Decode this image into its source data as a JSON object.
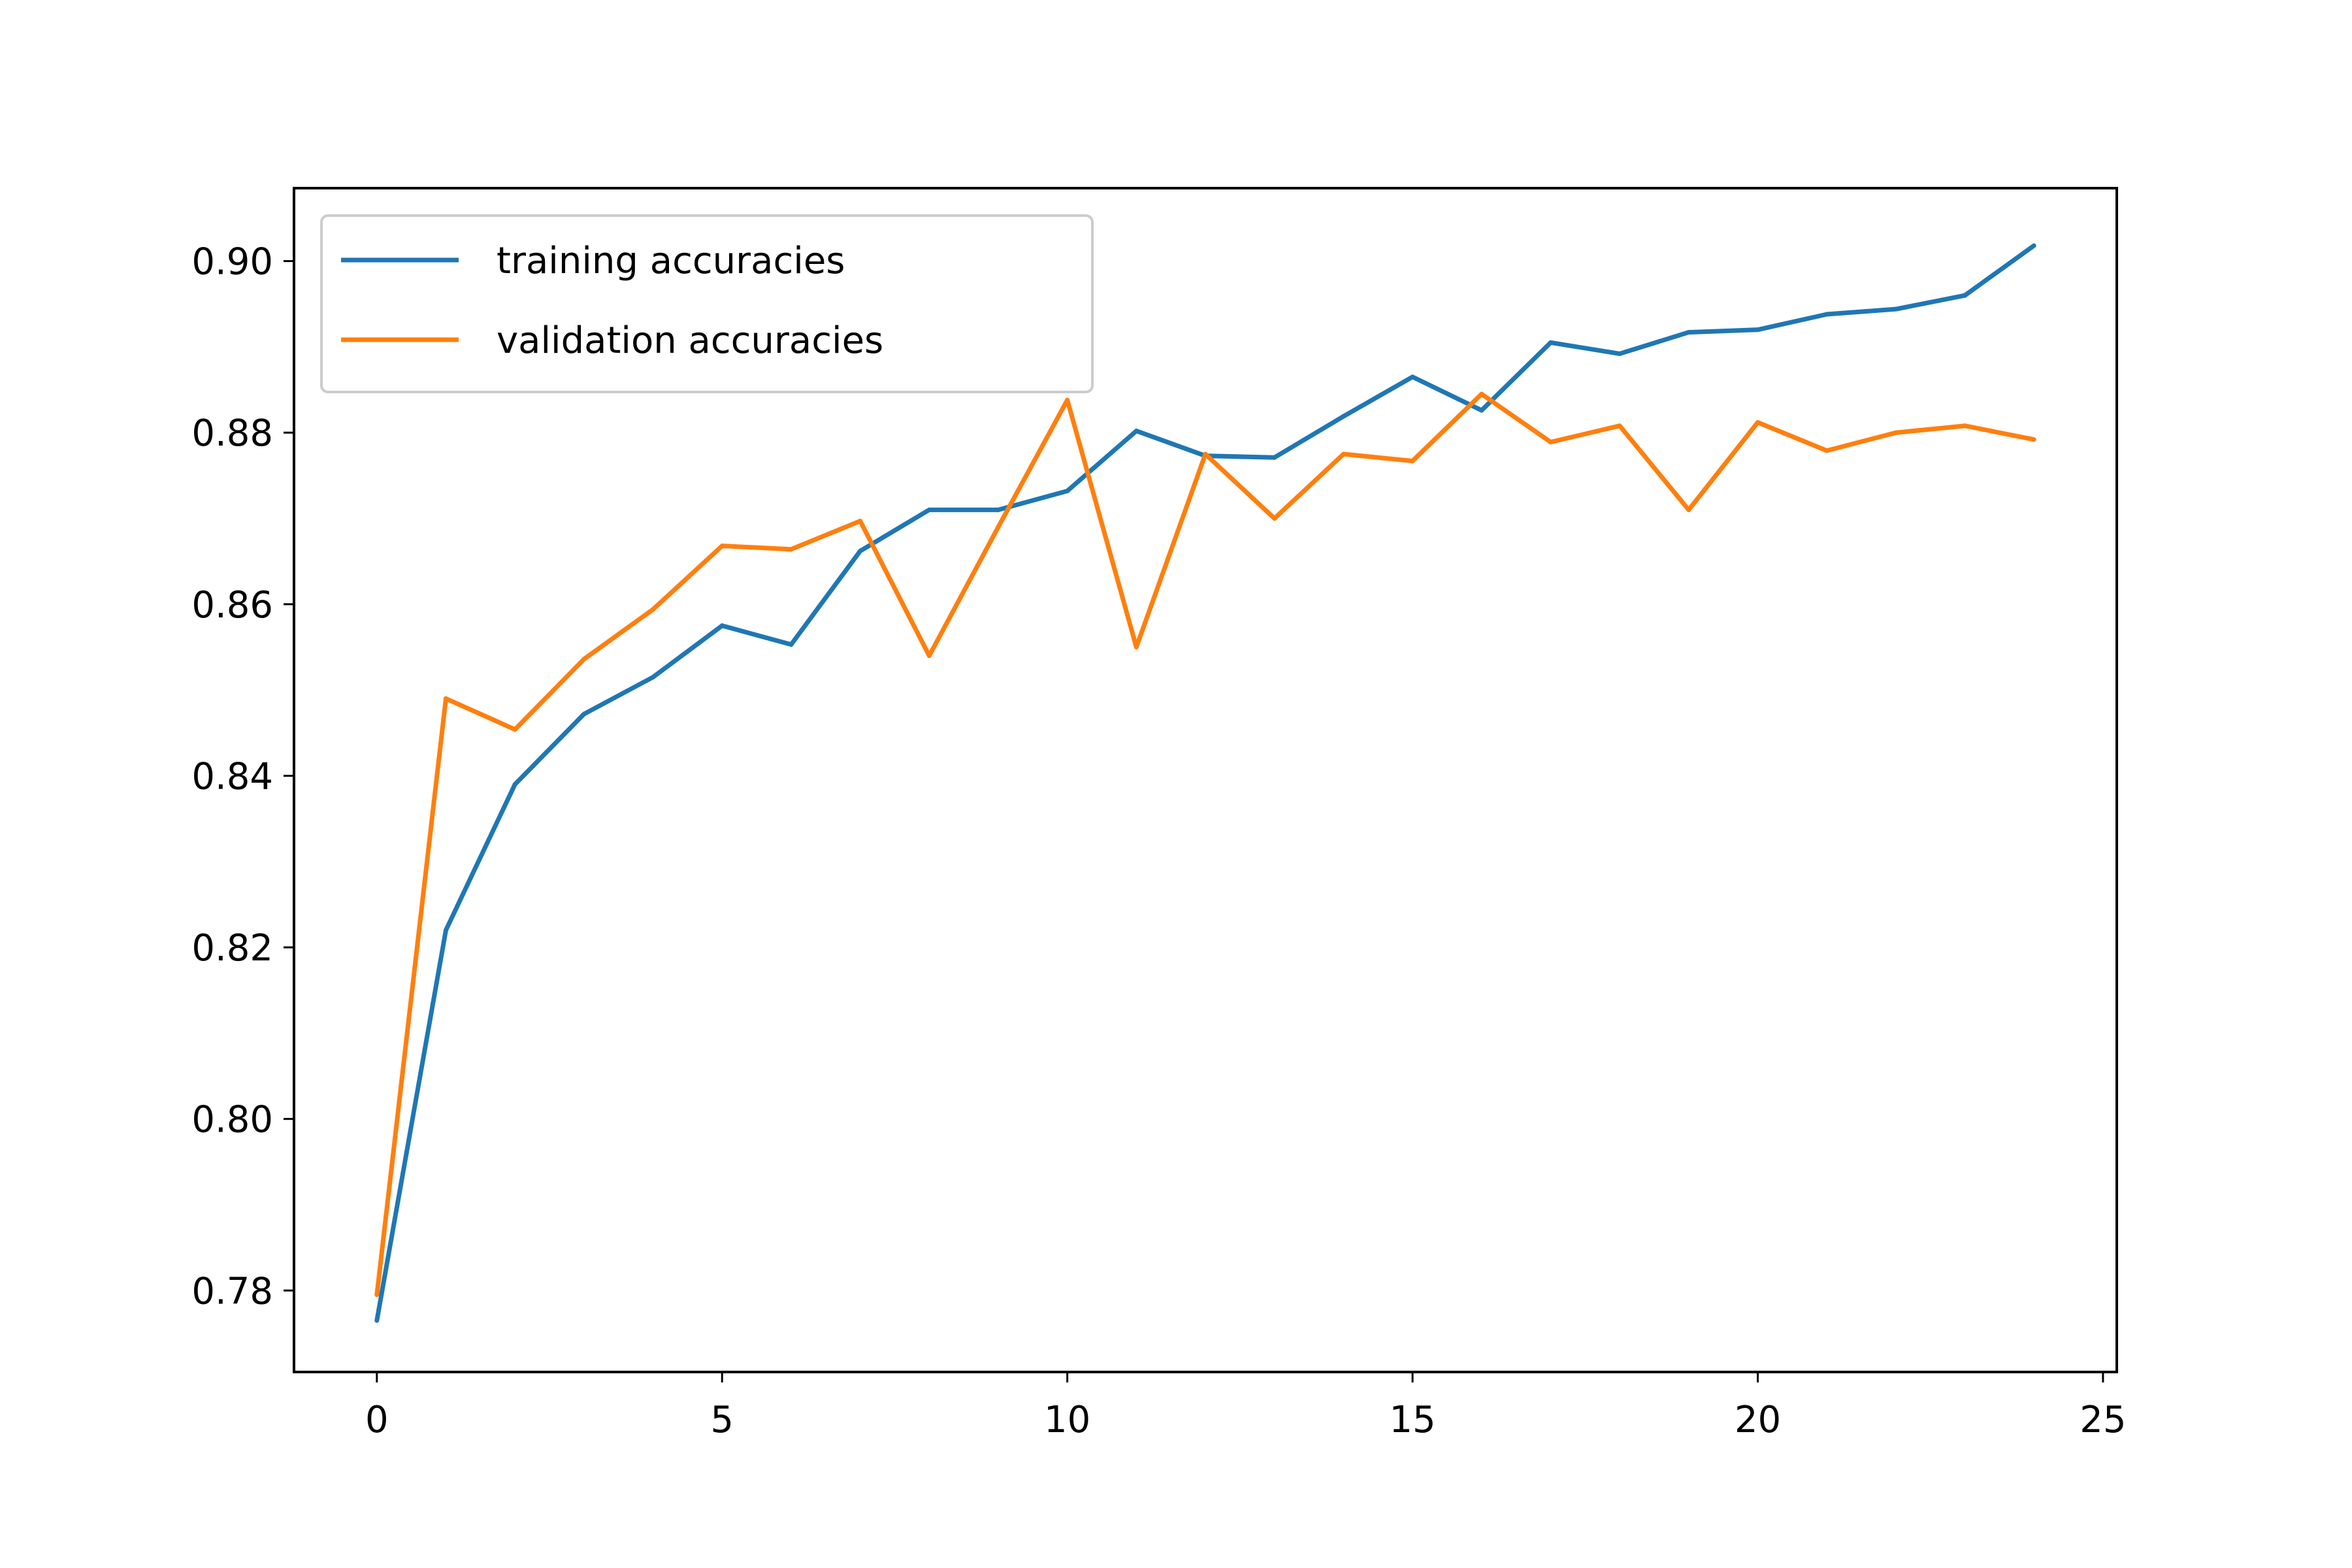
{
  "chart_data": {
    "type": "line",
    "title": "",
    "xlabel": "",
    "ylabel": "",
    "xlim": [
      -1.2,
      25.2
    ],
    "ylim": [
      0.7705,
      0.9085
    ],
    "x_ticks": [
      0,
      5,
      10,
      15,
      20,
      25
    ],
    "x_tick_labels": [
      "0",
      "5",
      "10",
      "15",
      "20",
      "25"
    ],
    "y_ticks": [
      0.78,
      0.8,
      0.82,
      0.84,
      0.86,
      0.88,
      0.9
    ],
    "y_tick_labels": [
      "0.78",
      "0.80",
      "0.82",
      "0.84",
      "0.86",
      "0.88",
      "0.90"
    ],
    "grid": false,
    "legend_position": "upper-left",
    "x": [
      0,
      1,
      2,
      3,
      4,
      5,
      6,
      7,
      8,
      9,
      10,
      11,
      12,
      13,
      14,
      15,
      16,
      17,
      18,
      19,
      20,
      21,
      22,
      23,
      24
    ],
    "series": [
      {
        "name": "training accuracies",
        "color": "#1f77b4",
        "values": [
          0.7765,
          0.822,
          0.839,
          0.8472,
          0.8515,
          0.8575,
          0.8553,
          0.8662,
          0.871,
          0.871,
          0.8732,
          0.8802,
          0.8773,
          0.8771,
          0.8819,
          0.8865,
          0.8826,
          0.8905,
          0.8892,
          0.8917,
          0.892,
          0.8938,
          0.8944,
          0.896,
          0.9018
        ]
      },
      {
        "name": "validation accuracies",
        "color": "#ff7f0e",
        "values": [
          0.7795,
          0.849,
          0.8454,
          0.8536,
          0.8594,
          0.8668,
          0.8664,
          0.8697,
          0.854,
          0.869,
          0.8838,
          0.855,
          0.8775,
          0.87,
          0.8775,
          0.8767,
          0.8845,
          0.8789,
          0.8808,
          0.871,
          0.8812,
          0.8779,
          0.88,
          0.8808,
          0.8792
        ]
      }
    ]
  }
}
